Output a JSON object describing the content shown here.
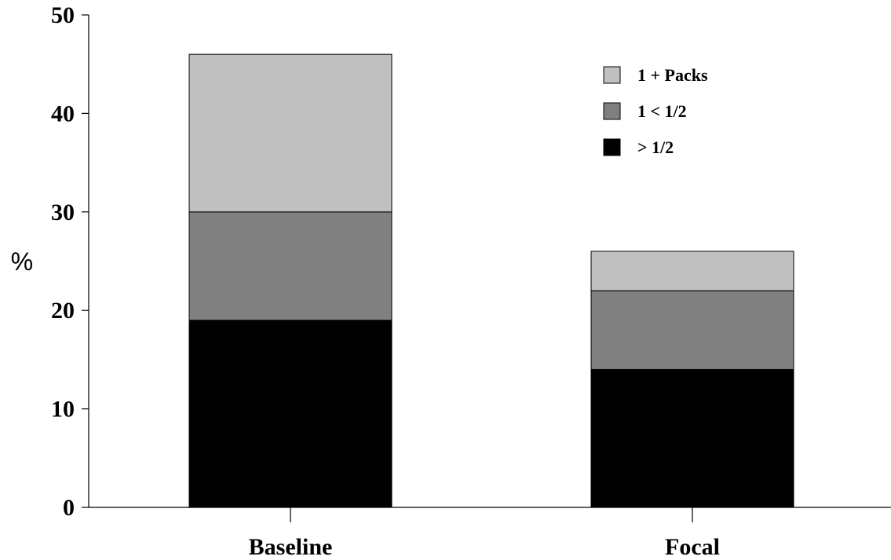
{
  "chart_data": {
    "type": "bar",
    "stacked": true,
    "categories": [
      "Baseline",
      "Focal"
    ],
    "series": [
      {
        "name": "> 1/2",
        "values": [
          19,
          14
        ],
        "color": "#000000"
      },
      {
        "name": "1 < 1/2",
        "values": [
          11,
          8
        ],
        "color": "#808080"
      },
      {
        "name": "1 + Packs",
        "values": [
          16,
          4
        ],
        "color": "#c0c0c0"
      }
    ],
    "legend_order": [
      "1 + Packs",
      "1 < 1/2",
      "> 1/2"
    ],
    "ylabel": "%",
    "ylim": [
      0,
      50
    ],
    "yticks": [
      "0",
      "10",
      "20",
      "30",
      "40",
      "50"
    ],
    "grid": false,
    "legend_position": "top-right"
  }
}
